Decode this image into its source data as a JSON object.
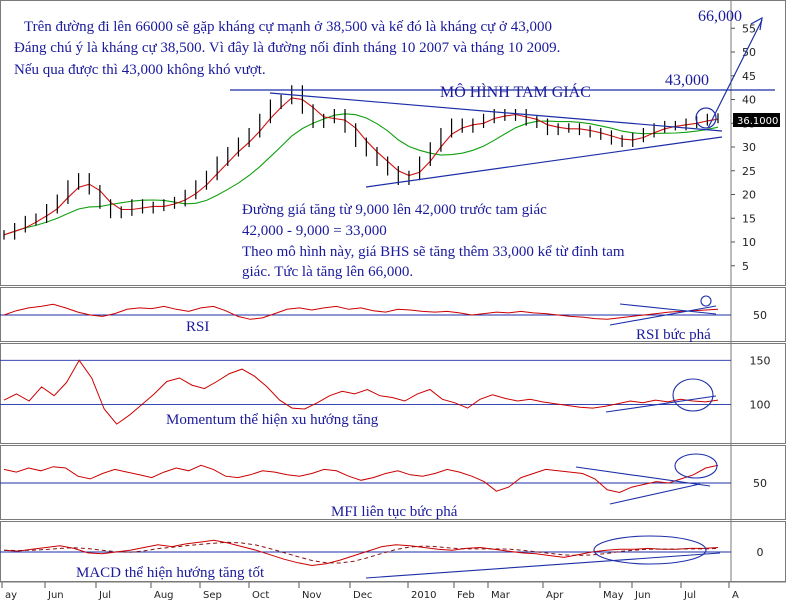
{
  "colors": {
    "price": "#000000",
    "ma_fast": "#d01010",
    "ma_slow": "#10a010",
    "indicator": "#cc0000",
    "annotation": "#1a1a9c",
    "guide": "#1c2fa8",
    "badge_bg": "#000000",
    "badge_fg": "#ffffff"
  },
  "header": {
    "line1": "Trên đường đi lên 66000 sẽ gặp kháng cự mạnh ở 38,500 và kế đó là kháng cự ở 43,000",
    "line2": "Đáng chú ý là kháng cự 38,500. Vì đây là đường nối đỉnh tháng 10 2007 và tháng 10 2009.",
    "line3": "Nếu qua được thì 43,000 không khó vượt."
  },
  "price_panel": {
    "target_label": "66,000",
    "resistance_label": "43,000",
    "pattern_title": "MÔ HÌNH TAM GIÁC",
    "last_price_badge": "36.1000",
    "note_line1": "Đường giá tăng từ 9,000 lên 42,000 trước tam giác",
    "note_line2": "42,000 - 9,000 = 33,000",
    "note_line3": "Theo mô hình này, giá BHS sẽ tăng thêm 33,000 kể từ đỉnh tam",
    "note_line4": "giác. Tức là tăng lên 66,000."
  },
  "rsi_panel": {
    "label": "RSI",
    "breakout_label": "RSI bức phá"
  },
  "momentum_panel": {
    "label": "Momentum thể hiện xu hướng tăng"
  },
  "mfi_panel": {
    "label": "MFI liên tục bức phá"
  },
  "macd_panel": {
    "label": "MACD thể hiện hướng tăng tốt"
  },
  "chart_data": [
    {
      "type": "line",
      "name": "price",
      "y_ticks": [
        5,
        10,
        15,
        20,
        25,
        30,
        35,
        40,
        45,
        50,
        55
      ],
      "ylim": [
        2,
        58
      ],
      "x_month_labels": [
        "ay",
        "Jun",
        "Jul",
        "Aug",
        "Sep",
        "Oct",
        "Nov",
        "Dec",
        "2010",
        "Feb",
        "Mar",
        "Apr",
        "May",
        "Jun",
        "Jul",
        "A"
      ],
      "series": [
        {
          "values": [
            11.5,
            13,
            14.5,
            15,
            17,
            19,
            22,
            23.5,
            21,
            18,
            16,
            16.5,
            18,
            17,
            17.5,
            18,
            18.5,
            20,
            22,
            24,
            27,
            29,
            31,
            33,
            36,
            39,
            40,
            42,
            38,
            35,
            36,
            37,
            34,
            31,
            29,
            27,
            25,
            23,
            24,
            27,
            30,
            33,
            35,
            34,
            35,
            36,
            37,
            36.5,
            37,
            35.5,
            35,
            33.5,
            34,
            34,
            33.5,
            33,
            32.5,
            31.5,
            31,
            32,
            33,
            34,
            34.5,
            34.5,
            35,
            35.5,
            36,
            36.1
          ]
        }
      ]
    },
    {
      "type": "line",
      "name": "RSI",
      "y_ticks": [
        50
      ],
      "ylim": [
        15,
        85
      ],
      "series": [
        {
          "values": [
            50,
            56,
            60,
            62,
            65,
            60,
            54,
            50,
            48,
            52,
            58,
            60,
            59,
            62,
            58,
            55,
            60,
            62,
            56,
            48,
            44,
            46,
            52,
            58,
            60,
            57,
            60,
            62,
            58,
            60,
            56,
            54,
            58,
            57,
            55,
            54,
            55,
            53,
            50,
            52,
            54,
            53,
            55,
            53,
            52,
            50,
            48,
            47,
            45,
            44,
            46,
            48,
            50,
            52,
            54,
            55,
            56,
            57,
            58
          ]
        }
      ]
    },
    {
      "type": "line",
      "name": "Momentum",
      "y_ticks": [
        100,
        150
      ],
      "ylim": [
        60,
        165
      ],
      "series": [
        {
          "values": [
            105,
            112,
            104,
            120,
            110,
            125,
            150,
            130,
            95,
            78,
            88,
            100,
            112,
            126,
            130,
            122,
            118,
            126,
            135,
            140,
            132,
            120,
            105,
            96,
            95,
            102,
            110,
            115,
            112,
            117,
            110,
            108,
            104,
            112,
            117,
            106,
            102,
            96,
            106,
            111,
            107,
            104,
            106,
            103,
            101,
            99,
            97,
            96,
            98,
            101,
            104,
            102,
            105,
            103,
            106,
            104,
            103,
            105
          ]
        }
      ]
    },
    {
      "type": "line",
      "name": "MFI",
      "y_ticks": [
        50
      ],
      "ylim": [
        0,
        100
      ],
      "series": [
        {
          "values": [
            70,
            66,
            72,
            68,
            74,
            72,
            60,
            56,
            64,
            70,
            66,
            62,
            58,
            66,
            72,
            68,
            76,
            70,
            60,
            58,
            62,
            68,
            66,
            62,
            60,
            64,
            70,
            68,
            60,
            54,
            58,
            64,
            68,
            62,
            60,
            64,
            70,
            66,
            60,
            52,
            38,
            44,
            58,
            64,
            70,
            68,
            66,
            64,
            56,
            40,
            36,
            44,
            48,
            52,
            50,
            56,
            62,
            72,
            76
          ]
        }
      ]
    },
    {
      "type": "line",
      "name": "MACD",
      "y_ticks": [
        0
      ],
      "ylim": [
        -3,
        3
      ],
      "series": [
        {
          "values": [
            0.2,
            0.1,
            0.3,
            0.5,
            0.7,
            0.4,
            -0.1,
            -0.2,
            0,
            0.2,
            0.5,
            0.8,
            0.6,
            0.9,
            1.1,
            1.3,
            1.0,
            0.6,
            0.2,
            -0.3,
            -0.8,
            -1.2,
            -1.5,
            -1.3,
            -0.9,
            -0.4,
            0.1,
            0.6,
            0.8,
            0.7,
            0.5,
            0.3,
            0.2,
            0.4,
            0.5,
            0.3,
            0.1,
            -0.1,
            -0.2,
            -0.4,
            -0.6,
            -0.3,
            0,
            0.2,
            0.3,
            0.3,
            0.4,
            0.3,
            0.3,
            0.4,
            0.4,
            0.5
          ]
        }
      ]
    }
  ]
}
